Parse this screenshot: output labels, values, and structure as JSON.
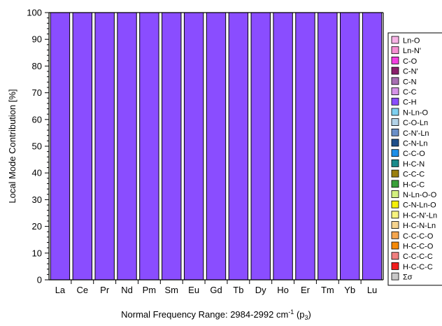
{
  "chart_data": {
    "type": "bar",
    "stacked": true,
    "categories": [
      "La",
      "Ce",
      "Pr",
      "Nd",
      "Pm",
      "Sm",
      "Eu",
      "Gd",
      "Tb",
      "Dy",
      "Ho",
      "Er",
      "Tm",
      "Yb",
      "Lu"
    ],
    "series": [
      {
        "name": "Ln-O",
        "color": "#f7b3e6",
        "values": [
          0,
          0,
          0,
          0,
          0,
          0,
          0,
          0,
          0,
          0,
          0,
          0,
          0,
          0,
          0
        ]
      },
      {
        "name": "Ln-N'",
        "color": "#f58fd3",
        "values": [
          0,
          0,
          0,
          0,
          0,
          0,
          0,
          0,
          0,
          0,
          0,
          0,
          0,
          0,
          0
        ]
      },
      {
        "name": "C-O",
        "color": "#f23fe0",
        "values": [
          0,
          0,
          0,
          0,
          0,
          0,
          0,
          0,
          0,
          0,
          0,
          0,
          0,
          0,
          0
        ]
      },
      {
        "name": "C-N'",
        "color": "#8a1f6b",
        "values": [
          0,
          0,
          0,
          0,
          0,
          0,
          0,
          0,
          0,
          0,
          0,
          0,
          0,
          0,
          0
        ]
      },
      {
        "name": "C-N",
        "color": "#a86fb3",
        "values": [
          0,
          0,
          0,
          0,
          0,
          0,
          0,
          0,
          0,
          0,
          0,
          0,
          0,
          0,
          0
        ]
      },
      {
        "name": "C-C",
        "color": "#d693e8",
        "values": [
          0,
          0,
          0,
          0,
          0,
          0,
          0,
          0,
          0,
          0,
          0,
          0,
          0,
          0,
          0
        ]
      },
      {
        "name": "C-H",
        "color": "#8a4dff",
        "values": [
          100,
          100,
          100,
          100,
          100,
          100,
          100,
          100,
          100,
          100,
          100,
          100,
          100,
          100,
          100
        ]
      },
      {
        "name": "N-Ln-O",
        "color": "#7fd0f0",
        "values": [
          0,
          0,
          0,
          0,
          0,
          0,
          0,
          0,
          0,
          0,
          0,
          0,
          0,
          0,
          0
        ]
      },
      {
        "name": "C-O-Ln",
        "color": "#b3d3e8",
        "values": [
          0,
          0,
          0,
          0,
          0,
          0,
          0,
          0,
          0,
          0,
          0,
          0,
          0,
          0,
          0
        ]
      },
      {
        "name": "C-N'-Ln",
        "color": "#6a8fc8",
        "values": [
          0,
          0,
          0,
          0,
          0,
          0,
          0,
          0,
          0,
          0,
          0,
          0,
          0,
          0,
          0
        ]
      },
      {
        "name": "C-N-Ln",
        "color": "#1f4f8a",
        "values": [
          0,
          0,
          0,
          0,
          0,
          0,
          0,
          0,
          0,
          0,
          0,
          0,
          0,
          0,
          0
        ]
      },
      {
        "name": "C-C-O",
        "color": "#1e8fe8",
        "values": [
          0,
          0,
          0,
          0,
          0,
          0,
          0,
          0,
          0,
          0,
          0,
          0,
          0,
          0,
          0
        ]
      },
      {
        "name": "H-C-N",
        "color": "#1a8a8a",
        "values": [
          0,
          0,
          0,
          0,
          0,
          0,
          0,
          0,
          0,
          0,
          0,
          0,
          0,
          0,
          0
        ]
      },
      {
        "name": "C-C-C",
        "color": "#9a7f10",
        "values": [
          0,
          0,
          0,
          0,
          0,
          0,
          0,
          0,
          0,
          0,
          0,
          0,
          0,
          0,
          0
        ]
      },
      {
        "name": "H-C-C",
        "color": "#3aa03a",
        "values": [
          0,
          0,
          0,
          0,
          0,
          0,
          0,
          0,
          0,
          0,
          0,
          0,
          0,
          0,
          0
        ]
      },
      {
        "name": "N-Ln-O-O",
        "color": "#d3f07f",
        "values": [
          0,
          0,
          0,
          0,
          0,
          0,
          0,
          0,
          0,
          0,
          0,
          0,
          0,
          0,
          0
        ]
      },
      {
        "name": "C-N-Ln-O",
        "color": "#f5f00a",
        "values": [
          0,
          0,
          0,
          0,
          0,
          0,
          0,
          0,
          0,
          0,
          0,
          0,
          0,
          0,
          0
        ]
      },
      {
        "name": "H-C-N'-Ln",
        "color": "#f8f47f",
        "values": [
          0,
          0,
          0,
          0,
          0,
          0,
          0,
          0,
          0,
          0,
          0,
          0,
          0,
          0,
          0
        ]
      },
      {
        "name": "H-C-N-Ln",
        "color": "#f5d38f",
        "values": [
          0,
          0,
          0,
          0,
          0,
          0,
          0,
          0,
          0,
          0,
          0,
          0,
          0,
          0,
          0
        ]
      },
      {
        "name": "C-C-C-O",
        "color": "#f5a64f",
        "values": [
          0,
          0,
          0,
          0,
          0,
          0,
          0,
          0,
          0,
          0,
          0,
          0,
          0,
          0,
          0
        ]
      },
      {
        "name": "H-C-C-O",
        "color": "#f58a0a",
        "values": [
          0,
          0,
          0,
          0,
          0,
          0,
          0,
          0,
          0,
          0,
          0,
          0,
          0,
          0,
          0
        ]
      },
      {
        "name": "C-C-C-C",
        "color": "#f07f7f",
        "values": [
          0,
          0,
          0,
          0,
          0,
          0,
          0,
          0,
          0,
          0,
          0,
          0,
          0,
          0,
          0
        ]
      },
      {
        "name": "H-C-C-C",
        "color": "#f21f1f",
        "values": [
          0,
          0,
          0,
          0,
          0,
          0,
          0,
          0,
          0,
          0,
          0,
          0,
          0,
          0,
          0
        ]
      },
      {
        "name": "Σσ",
        "color": "#c8c8c8",
        "values": [
          0,
          0,
          0,
          0,
          0,
          0,
          0,
          0,
          0,
          0,
          0,
          0,
          0,
          0,
          0
        ]
      }
    ],
    "ylabel": "Local Mode Contribution [%]",
    "xlabel_main": "Normal Frequency Range: 2984-2992 cm",
    "xlabel_sup": "-1",
    "xlabel_tail": " (p",
    "xlabel_sub": "3",
    "xlabel_close": ")",
    "ylim": [
      0,
      100
    ],
    "yticks": [
      0,
      10,
      20,
      30,
      40,
      50,
      60,
      70,
      80,
      90,
      100
    ],
    "legend_position": "right",
    "grid": false
  }
}
